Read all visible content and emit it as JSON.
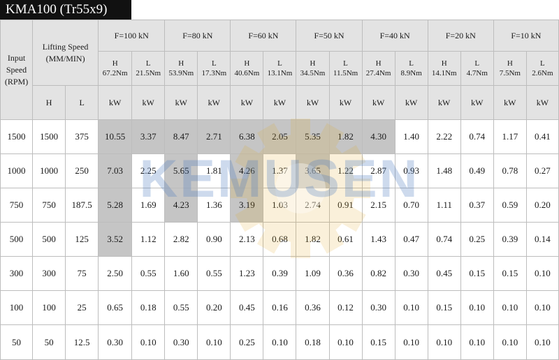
{
  "title": "KMA100 (Tr55x9)",
  "watermark_text": "KEMUSEN",
  "colors": {
    "header_bg": "#e3e3e3",
    "highlight": "#9b9b9b",
    "title_bg": "#111111"
  },
  "header": {
    "input_speed": "Input Speed (RPM)",
    "lifting_speed": "Lifting Speed (MM/MIN)",
    "h": "H",
    "l": "L",
    "forces": [
      {
        "label": "F=100 kN",
        "h": "H",
        "h_torque": "67.2Nm",
        "l": "L",
        "l_torque": "21.5Nm",
        "h_unit": "kW",
        "l_unit": "kW"
      },
      {
        "label": "F=80 kN",
        "h": "H",
        "h_torque": "53.9Nm",
        "l": "L",
        "l_torque": "17.3Nm",
        "h_unit": "kW",
        "l_unit": "kW"
      },
      {
        "label": "F=60 kN",
        "h": "H",
        "h_torque": "40.6Nm",
        "l": "L",
        "l_torque": "13.1Nm",
        "h_unit": "kW",
        "l_unit": "kW"
      },
      {
        "label": "F=50 kN",
        "h": "H",
        "h_torque": "34.5Nm",
        "l": "L",
        "l_torque": "11.5Nm",
        "h_unit": "kW",
        "l_unit": "kW"
      },
      {
        "label": "F=40 kN",
        "h": "H",
        "h_torque": "27.4Nm",
        "l": "L",
        "l_torque": "8.9Nm",
        "h_unit": "kW",
        "l_unit": "kW"
      },
      {
        "label": "F=20 kN",
        "h": "H",
        "h_torque": "14.1Nm",
        "l": "L",
        "l_torque": "4.7Nm",
        "h_unit": "kW",
        "l_unit": "kW"
      },
      {
        "label": "F=10 kN",
        "h": "H",
        "h_torque": "7.5Nm",
        "l": "L",
        "l_torque": "2.6Nm",
        "h_unit": "kW",
        "l_unit": "kW"
      }
    ]
  },
  "rows": [
    {
      "rpm": "1500",
      "h": "1500",
      "l": "375",
      "values": [
        "10.55",
        "3.37",
        "8.47",
        "2.71",
        "6.38",
        "2.05",
        "5.35",
        "1.82",
        "4.30",
        "1.40",
        "2.22",
        "0.74",
        "1.17",
        "0.41"
      ],
      "highlight": [
        1,
        1,
        1,
        1,
        1,
        1,
        1,
        1,
        1,
        0,
        0,
        0,
        0,
        0
      ]
    },
    {
      "rpm": "1000",
      "h": "1000",
      "l": "250",
      "values": [
        "7.03",
        "2.25",
        "5.65",
        "1.81",
        "4.26",
        "1.37",
        "3.65",
        "1.22",
        "2.87",
        "0.93",
        "1.48",
        "0.49",
        "0.78",
        "0.27"
      ],
      "highlight": [
        1,
        0,
        1,
        0,
        1,
        0,
        1,
        0,
        0,
        0,
        0,
        0,
        0,
        0
      ]
    },
    {
      "rpm": "750",
      "h": "750",
      "l": "187.5",
      "values": [
        "5.28",
        "1.69",
        "4.23",
        "1.36",
        "3.19",
        "1.03",
        "2.74",
        "0.91",
        "2.15",
        "0.70",
        "1.11",
        "0.37",
        "0.59",
        "0.20"
      ],
      "highlight": [
        1,
        0,
        1,
        0,
        1,
        0,
        0,
        0,
        0,
        0,
        0,
        0,
        0,
        0
      ]
    },
    {
      "rpm": "500",
      "h": "500",
      "l": "125",
      "values": [
        "3.52",
        "1.12",
        "2.82",
        "0.90",
        "2.13",
        "0.68",
        "1.82",
        "0.61",
        "1.43",
        "0.47",
        "0.74",
        "0.25",
        "0.39",
        "0.14"
      ],
      "highlight": [
        1,
        0,
        0,
        0,
        0,
        0,
        0,
        0,
        0,
        0,
        0,
        0,
        0,
        0
      ]
    },
    {
      "rpm": "300",
      "h": "300",
      "l": "75",
      "values": [
        "2.50",
        "0.55",
        "1.60",
        "0.55",
        "1.23",
        "0.39",
        "1.09",
        "0.36",
        "0.82",
        "0.30",
        "0.45",
        "0.15",
        "0.15",
        "0.10"
      ],
      "highlight": [
        0,
        0,
        0,
        0,
        0,
        0,
        0,
        0,
        0,
        0,
        0,
        0,
        0,
        0
      ]
    },
    {
      "rpm": "100",
      "h": "100",
      "l": "25",
      "values": [
        "0.65",
        "0.18",
        "0.55",
        "0.20",
        "0.45",
        "0.16",
        "0.36",
        "0.12",
        "0.30",
        "0.10",
        "0.15",
        "0.10",
        "0.10",
        "0.10"
      ],
      "highlight": [
        0,
        0,
        0,
        0,
        0,
        0,
        0,
        0,
        0,
        0,
        0,
        0,
        0,
        0
      ]
    },
    {
      "rpm": "50",
      "h": "50",
      "l": "12.5",
      "values": [
        "0.30",
        "0.10",
        "0.30",
        "0.10",
        "0.25",
        "0.10",
        "0.18",
        "0.10",
        "0.15",
        "0.10",
        "0.10",
        "0.10",
        "0.10",
        "0.10"
      ],
      "highlight": [
        0,
        0,
        0,
        0,
        0,
        0,
        0,
        0,
        0,
        0,
        0,
        0,
        0,
        0
      ]
    }
  ]
}
